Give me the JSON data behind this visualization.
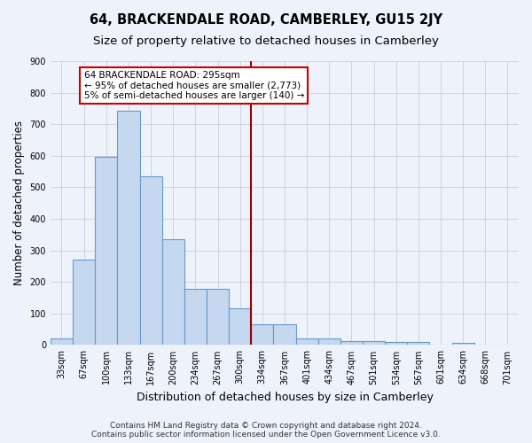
{
  "title": "64, BRACKENDALE ROAD, CAMBERLEY, GU15 2JY",
  "subtitle": "Size of property relative to detached houses in Camberley",
  "xlabel": "Distribution of detached houses by size in Camberley",
  "ylabel": "Number of detached properties",
  "bin_labels": [
    "33sqm",
    "67sqm",
    "100sqm",
    "133sqm",
    "167sqm",
    "200sqm",
    "234sqm",
    "267sqm",
    "300sqm",
    "334sqm",
    "367sqm",
    "401sqm",
    "434sqm",
    "467sqm",
    "501sqm",
    "534sqm",
    "567sqm",
    "601sqm",
    "634sqm",
    "668sqm",
    "701sqm"
  ],
  "bar_heights": [
    22,
    270,
    597,
    742,
    535,
    335,
    178,
    178,
    115,
    67,
    65,
    22,
    22,
    12,
    12,
    9,
    9,
    0,
    8,
    0,
    0
  ],
  "bar_color": "#c5d8f0",
  "bar_edge_color": "#6699cc",
  "background_color": "#eef2fb",
  "grid_color": "#c8cfe0",
  "vline_color": "#990000",
  "annotation_text": "64 BRACKENDALE ROAD: 295sqm\n← 95% of detached houses are smaller (2,773)\n5% of semi-detached houses are larger (140) →",
  "annotation_box_color": "white",
  "annotation_box_edge_color": "#cc0000",
  "ylim": [
    0,
    900
  ],
  "yticks": [
    0,
    100,
    200,
    300,
    400,
    500,
    600,
    700,
    800,
    900
  ],
  "footnote": "Contains HM Land Registry data © Crown copyright and database right 2024.\nContains public sector information licensed under the Open Government Licence v3.0.",
  "title_fontsize": 10.5,
  "subtitle_fontsize": 9.5,
  "ylabel_fontsize": 8.5,
  "xlabel_fontsize": 9,
  "tick_fontsize": 7,
  "annot_fontsize": 7.5,
  "footnote_fontsize": 6.5
}
